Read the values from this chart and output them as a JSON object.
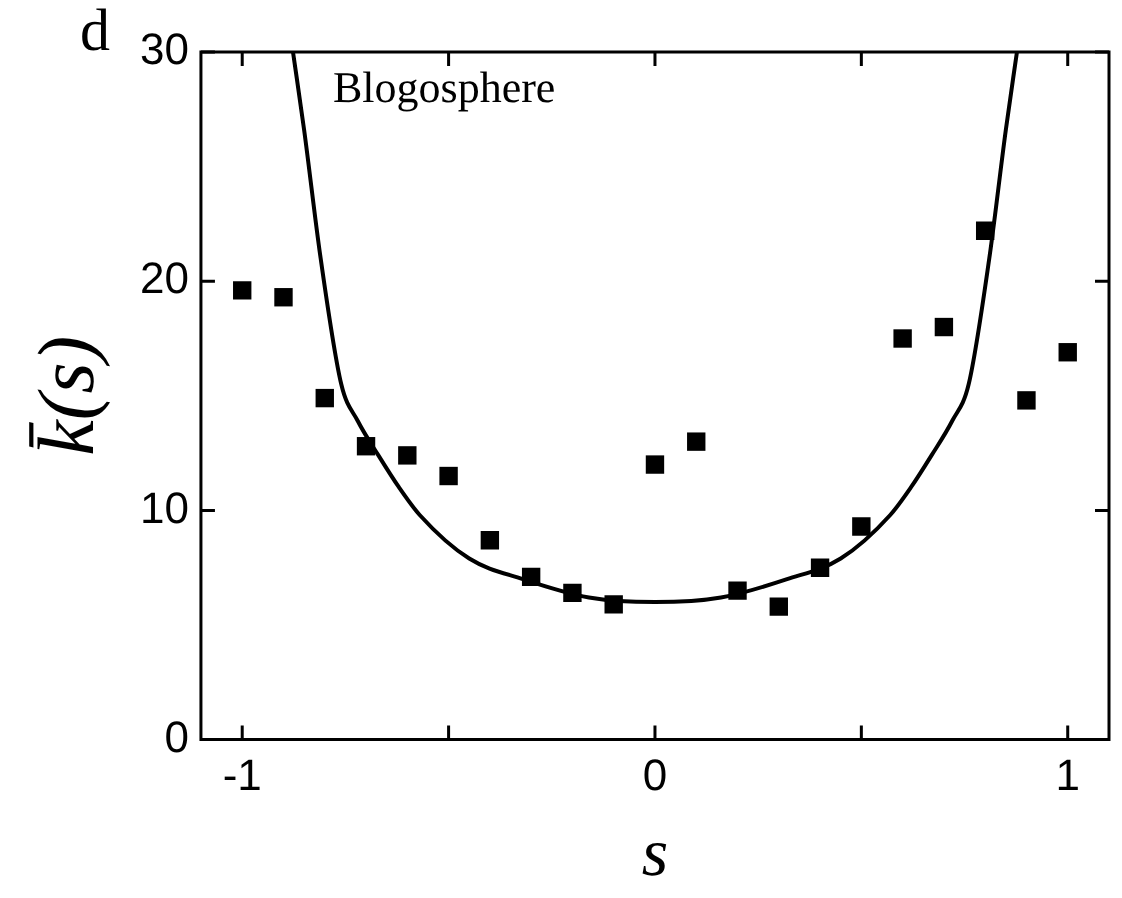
{
  "chart_data": {
    "type": "scatter",
    "xlabel": "s",
    "ylabel": "k̄(s)",
    "annotations": [
      "d",
      "Blogosphere"
    ],
    "xlim": [
      -1.1,
      1.1
    ],
    "ylim": [
      0,
      30
    ],
    "xticks": [
      -1,
      {
        "value": -0.5,
        "label": null
      },
      0,
      {
        "value": 0.5,
        "label": null
      },
      1
    ],
    "yticks": [
      0,
      10,
      20,
      30
    ],
    "marker": "square",
    "legend": false,
    "series": [
      {
        "color": "#000000",
        "x": [
          -1,
          -0.9,
          -0.8,
          -0.7,
          -0.6,
          -0.5,
          -0.4,
          -0.3,
          -0.2,
          -0.1,
          0,
          0.1,
          0.2,
          0.3,
          0.4,
          0.5,
          0.6,
          0.7,
          0.8,
          0.9,
          1
        ],
        "values": [
          19.6,
          19.3,
          14.9,
          12.8,
          12.4,
          11.5,
          8.7,
          7.1,
          6.4,
          5.9,
          12.0,
          13.0,
          6.5,
          5.8,
          7.5,
          9.3,
          17.5,
          18.0,
          22.2,
          14.8,
          16.9
        ]
      },
      {
        "type": "line",
        "color": "#000000",
        "line_style": "solid",
        "marker": "none",
        "x": [
          -0.877,
          -0.85,
          -0.81,
          -0.76,
          -0.72,
          -0.67,
          -0.62,
          -0.57,
          -0.45,
          -0.32,
          -0.16,
          0,
          0.16,
          0.32,
          0.45,
          0.57,
          0.62,
          0.67,
          0.72,
          0.76,
          0.81,
          0.85,
          0.877
        ],
        "values": [
          30,
          26.6,
          21,
          15.5,
          13.9,
          12.4,
          11.0,
          9.8,
          7.9,
          7.0,
          6.2,
          6.0,
          6.2,
          7.0,
          7.9,
          9.8,
          11.0,
          12.4,
          13.9,
          15.5,
          21,
          26.6,
          30
        ]
      }
    ]
  }
}
